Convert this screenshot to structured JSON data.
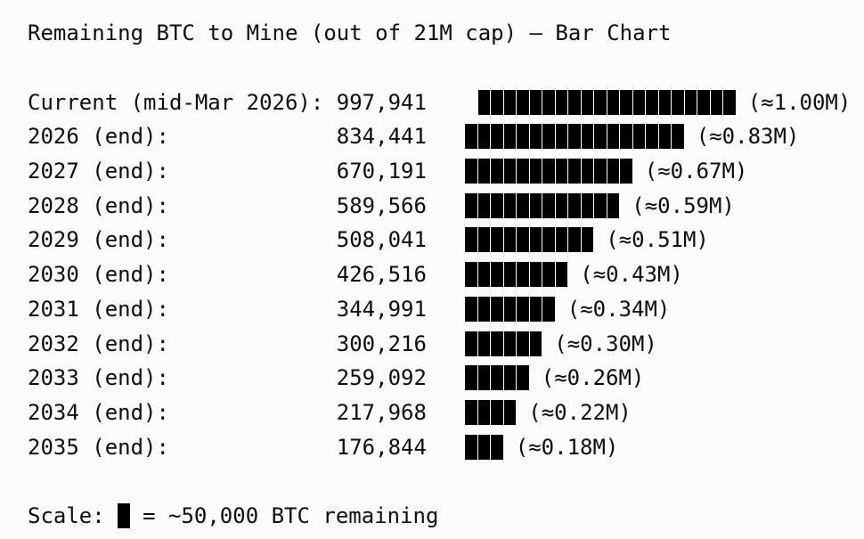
{
  "title": "Remaining BTC to Mine (out of 21M cap) — Bar Chart",
  "colors": {
    "background": "#fafafa",
    "text": "#0d0d0d",
    "bar": "#000000"
  },
  "scale_note": {
    "prefix": "Scale: ",
    "block_glyph": "█",
    "suffix": " = ~50,000 BTC remaining"
  },
  "chart_data": {
    "type": "bar",
    "title": "Remaining BTC to Mine (out of 21M cap) — Bar Chart",
    "unit": "BTC",
    "block_value": 50000,
    "orientation": "horizontal",
    "rows": [
      {
        "label": "Current (mid-Mar 2026):",
        "value": "997,941",
        "value_num": 997941,
        "blocks": 20,
        "approx": "(≈1.00M)",
        "bar_offset_chars": 1
      },
      {
        "label": "2026 (end):",
        "value": "834,441",
        "value_num": 834441,
        "blocks": 17,
        "approx": "(≈0.83M)",
        "bar_offset_chars": 0
      },
      {
        "label": "2027 (end):",
        "value": "670,191",
        "value_num": 670191,
        "blocks": 13,
        "approx": "(≈0.67M)",
        "bar_offset_chars": 0
      },
      {
        "label": "2028 (end):",
        "value": "589,566",
        "value_num": 589566,
        "blocks": 12,
        "approx": "(≈0.59M)",
        "bar_offset_chars": 0
      },
      {
        "label": "2029 (end):",
        "value": "508,041",
        "value_num": 508041,
        "blocks": 10,
        "approx": "(≈0.51M)",
        "bar_offset_chars": 0
      },
      {
        "label": "2030 (end):",
        "value": "426,516",
        "value_num": 426516,
        "blocks": 8,
        "approx": "(≈0.43M)",
        "bar_offset_chars": 0
      },
      {
        "label": "2031 (end):",
        "value": "344,991",
        "value_num": 344991,
        "blocks": 7,
        "approx": "(≈0.34M)",
        "bar_offset_chars": 0
      },
      {
        "label": "2032 (end):",
        "value": "300,216",
        "value_num": 300216,
        "blocks": 6,
        "approx": "(≈0.30M)",
        "bar_offset_chars": 0
      },
      {
        "label": "2033 (end):",
        "value": "259,092",
        "value_num": 259092,
        "blocks": 5,
        "approx": "(≈0.26M)",
        "bar_offset_chars": 0
      },
      {
        "label": "2034 (end):",
        "value": "217,968",
        "value_num": 217968,
        "blocks": 4,
        "approx": "(≈0.22M)",
        "bar_offset_chars": 0
      },
      {
        "label": "2035 (end):",
        "value": "176,844",
        "value_num": 176844,
        "blocks": 3,
        "approx": "(≈0.18M)",
        "bar_offset_chars": 0
      }
    ]
  }
}
